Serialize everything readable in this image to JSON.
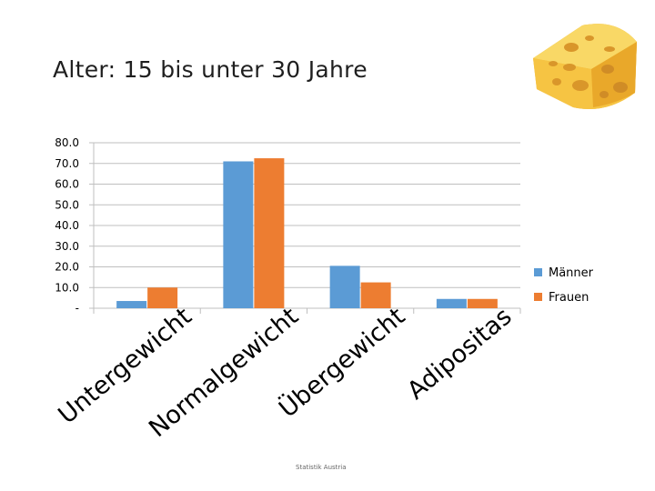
{
  "slide": {
    "title": "Alter: 15 bis unter 30 Jahre",
    "source": "Statistik Austria",
    "image": "cheese-wedge-icon"
  },
  "colors": {
    "maenner": "#5B9BD5",
    "frauen": "#ED7D31",
    "axis": "#BFBFBF",
    "text": "#000000"
  },
  "chart_data": {
    "type": "bar",
    "categories": [
      "Untergewicht",
      "Normalgewicht",
      "Übergewicht",
      "Adipositas"
    ],
    "series": [
      {
        "name": "Männer",
        "values": [
          3.5,
          71.0,
          20.5,
          4.5
        ]
      },
      {
        "name": "Frauen",
        "values": [
          10.0,
          72.5,
          12.5,
          4.5
        ]
      }
    ],
    "yticks": [
      "-",
      "10.0",
      "20.0",
      "30.0",
      "40.0",
      "50.0",
      "60.0",
      "70.0",
      "80.0"
    ],
    "ylim": [
      0,
      80
    ],
    "grid": true,
    "legend": "right",
    "category_label_rotation": "diagonal"
  }
}
